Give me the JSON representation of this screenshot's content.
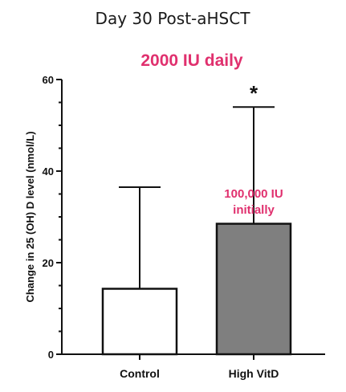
{
  "chart_data": {
    "type": "bar",
    "title": "Day 30 Post-aHSCT",
    "ylabel": "Change in 25 (OH) D level (nmol/L)",
    "xlabel": "",
    "ylim": [
      0,
      60
    ],
    "yticks": [
      0,
      20,
      40,
      60
    ],
    "categories": [
      "Control",
      "High VitD"
    ],
    "values": [
      14.3,
      28.5
    ],
    "error_upper": [
      36.5,
      54
    ],
    "bar_colors": [
      "#ffffff",
      "#7f7f7f"
    ],
    "significance_marker": "*",
    "annotations": {
      "dose_daily": "2000 IU daily",
      "dose_initial_line1": "100,000 IU",
      "dose_initial_line2": "initially"
    },
    "annotation_color": "#e0306e",
    "grid": false,
    "legend": "none"
  }
}
